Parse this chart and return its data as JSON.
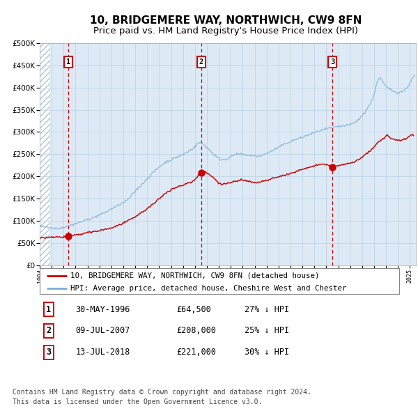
{
  "title": "10, BRIDGEMERE WAY, NORTHWICH, CW9 8FN",
  "subtitle": "Price paid vs. HM Land Registry's House Price Index (HPI)",
  "title_fontsize": 11,
  "subtitle_fontsize": 9.5,
  "background_color": "#ddeaf6",
  "grid_color": "#b8cfe0",
  "hatch_color": "#b0c4d8",
  "ylim": [
    0,
    500000
  ],
  "yticks": [
    0,
    50000,
    100000,
    150000,
    200000,
    250000,
    300000,
    350000,
    400000,
    450000,
    500000
  ],
  "sale_color": "#cc0000",
  "hpi_color": "#7aaed4",
  "vline_color": "#cc0000",
  "sales": [
    {
      "year": 1996.41,
      "price": 64500,
      "label": "1"
    },
    {
      "year": 2007.52,
      "price": 208000,
      "label": "2"
    },
    {
      "year": 2018.52,
      "price": 221000,
      "label": "3"
    }
  ],
  "sale_annotations": [
    {
      "label": "1",
      "date": "30-MAY-1996",
      "price": "£64,500",
      "pct": "27% ↓ HPI"
    },
    {
      "label": "2",
      "date": "09-JUL-2007",
      "price": "£208,000",
      "pct": "25% ↓ HPI"
    },
    {
      "label": "3",
      "date": "13-JUL-2018",
      "price": "£221,000",
      "pct": "30% ↓ HPI"
    }
  ],
  "legend_line1": "10, BRIDGEMERE WAY, NORTHWICH, CW9 8FN (detached house)",
  "legend_line2": "HPI: Average price, detached house, Cheshire West and Chester",
  "footer": "Contains HM Land Registry data © Crown copyright and database right 2024.\nThis data is licensed under the Open Government Licence v3.0.",
  "footer_fontsize": 7.0
}
